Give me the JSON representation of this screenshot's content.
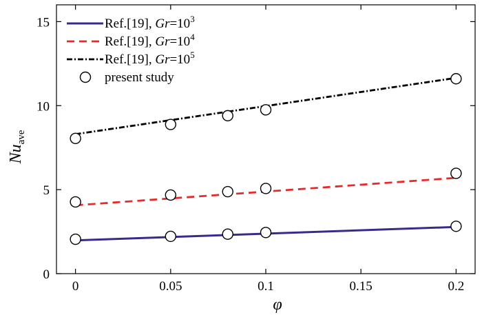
{
  "chart_data": {
    "type": "line",
    "xlabel": "φ",
    "ylabel": "Nu",
    "ylabel_sub": "ave",
    "xlim": [
      -0.01,
      0.21
    ],
    "ylim": [
      0,
      16
    ],
    "xticks": [
      0,
      0.05,
      0.1,
      0.15,
      0.2
    ],
    "xtick_labels": [
      "0",
      "0.05",
      "0.1",
      "0.15",
      "0.2"
    ],
    "yticks": [
      0,
      5,
      10,
      15
    ],
    "ytick_labels": [
      "0",
      "5",
      "10",
      "15"
    ],
    "grid": false,
    "legend_position": "top-left",
    "series": [
      {
        "name": "Ref.[19], Gr=10³",
        "legend_prefix": "Ref.[19], ",
        "legend_var": "Gr",
        "legend_eq": "=10",
        "legend_exp": "3",
        "style": "solid",
        "color": "#3b2a8c",
        "x": [
          0,
          0.2
        ],
        "values": [
          1.98,
          2.78
        ]
      },
      {
        "name": "Ref.[19], Gr=10⁴",
        "legend_prefix": "Ref.[19], ",
        "legend_var": "Gr",
        "legend_eq": "=10",
        "legend_exp": "4",
        "style": "dashed",
        "color": "#e8282b",
        "x": [
          0,
          0.2
        ],
        "values": [
          4.07,
          5.7
        ]
      },
      {
        "name": "Ref.[19], Gr=10⁵",
        "legend_prefix": "Ref.[19], ",
        "legend_var": "Gr",
        "legend_eq": "=10",
        "legend_exp": "5",
        "style": "dashdot",
        "color": "#000000",
        "x": [
          0,
          0.2
        ],
        "values": [
          8.3,
          11.65
        ]
      },
      {
        "name": "present study",
        "style": "markers",
        "marker": "circle",
        "x": [
          0,
          0.05,
          0.08,
          0.1,
          0.2,
          0,
          0.05,
          0.08,
          0.1,
          0.2,
          0,
          0.05,
          0.08,
          0.1,
          0.2
        ],
        "values": [
          2.05,
          2.22,
          2.35,
          2.45,
          2.82,
          4.27,
          4.68,
          4.88,
          5.07,
          5.97,
          8.05,
          8.88,
          9.4,
          9.75,
          11.6
        ]
      }
    ]
  }
}
